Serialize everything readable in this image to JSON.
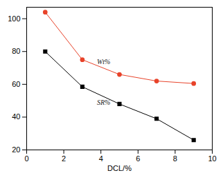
{
  "chart_data": {
    "type": "line",
    "x_label": "DCL/%",
    "x": [
      1,
      3,
      5,
      7,
      9
    ],
    "series": [
      {
        "name": "Wt%",
        "color": "#e8432a",
        "marker": "circle",
        "values": [
          104,
          75,
          66,
          62,
          60.5
        ]
      },
      {
        "name": "SR%",
        "color": "#000000",
        "marker": "square",
        "values": [
          80,
          58.5,
          48,
          39,
          26
        ]
      }
    ],
    "xlim": [
      0,
      10
    ],
    "xticks": [
      0,
      2,
      4,
      6,
      8,
      10
    ],
    "ylim": [
      20,
      107
    ],
    "yticks": [
      20,
      40,
      60,
      80,
      100
    ],
    "grid": false
  }
}
